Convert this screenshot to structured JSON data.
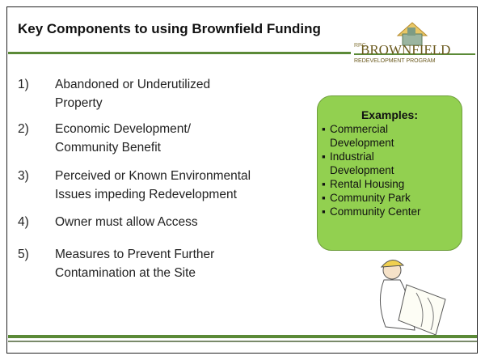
{
  "header": {
    "title": "Key Components to using Brownfield Funding",
    "logo": {
      "small": "RPC",
      "name": "BROWNFIELD",
      "subtitle": "REDEVELOPMENT PROGRAM"
    }
  },
  "list": {
    "items": [
      {
        "number": "1)",
        "lines": [
          "Abandoned or Underutilized",
          "Property"
        ]
      },
      {
        "number": "2)",
        "lines": [
          "Economic Development/",
          "Community Benefit"
        ]
      },
      {
        "number": "3)",
        "lines": [
          "Perceived or Known Environmental",
          "Issues impeding Redevelopment"
        ]
      },
      {
        "number": "4)",
        "lines": [
          "Owner must allow Access"
        ]
      },
      {
        "number": "5)",
        "lines": [
          "Measures to Prevent Further",
          "Contamination at the Site"
        ]
      }
    ]
  },
  "examples": {
    "title": "Examples:",
    "items": [
      [
        "Commercial",
        "Development"
      ],
      [
        "Industrial",
        "Development"
      ],
      [
        "Rental Housing"
      ],
      [
        "Community Park"
      ],
      [
        "Community Center"
      ]
    ]
  }
}
